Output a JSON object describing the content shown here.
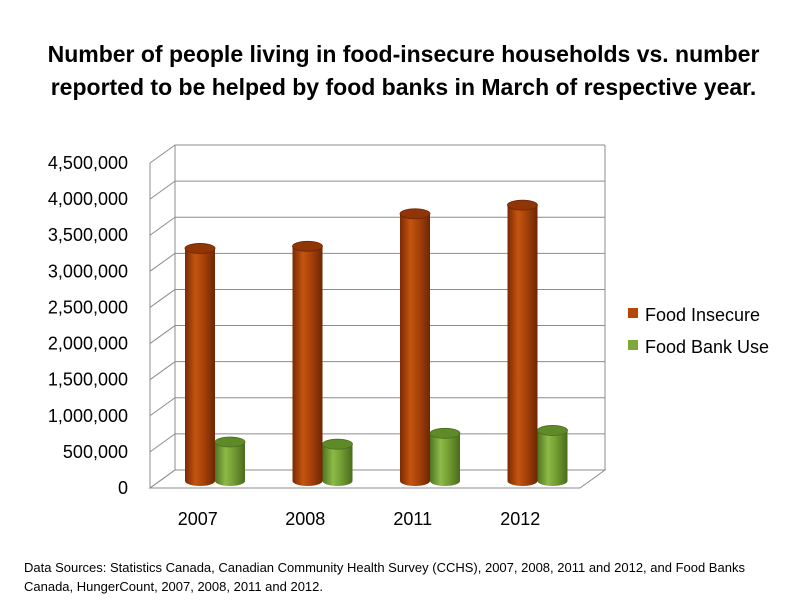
{
  "chart_data": {
    "type": "bar",
    "style": "3d-cylinder",
    "title_lines": [
      "Number of people living in food-insecure households vs. number",
      "reported to be helped by food banks in March of respective year."
    ],
    "categories": [
      "2007",
      "2008",
      "2011",
      "2012"
    ],
    "series": [
      {
        "name": "Food Insecure",
        "values": [
          3400000,
          3430000,
          3880000,
          4000000
        ],
        "color": "#b5470b"
      },
      {
        "name": "Food Bank Use",
        "values": [
          720000,
          690000,
          840000,
          880000
        ],
        "color": "#7da83a"
      }
    ],
    "ylim": [
      0,
      4500000
    ],
    "yticks": [
      "0",
      "500,000",
      "1,000,000",
      "1,500,000",
      "2,000,000",
      "2,500,000",
      "3,000,000",
      "3,500,000",
      "4,000,000",
      "4,500,000"
    ],
    "ytick_values": [
      0,
      500000,
      1000000,
      1500000,
      2000000,
      2500000,
      3000000,
      3500000,
      4000000,
      4500000
    ],
    "legend_position": "right",
    "grid": true
  },
  "source_note": "Data Sources: Statistics Canada, Canadian Community Health Survey (CCHS), 2007, 2008, 2011 and 2012, and Food Banks Canada, HungerCount, 2007, 2008, 2011 and 2012."
}
